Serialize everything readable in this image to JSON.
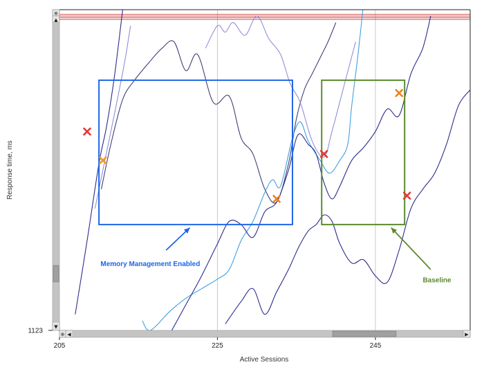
{
  "chart_data": {
    "type": "line",
    "xlabel": "Active Sessions",
    "ylabel": "Response time, ms",
    "x_ticks": [
      205,
      225,
      245
    ],
    "y_ticks": [
      1123
    ],
    "xlim": [
      205,
      257
    ],
    "grid": true,
    "series": [
      {
        "color": "#2b2b8c",
        "points": [
          [
            207,
            0.05
          ],
          [
            208.5,
            0.28
          ],
          [
            210,
            0.52
          ],
          [
            211,
            0.64
          ],
          [
            212,
            0.8
          ],
          [
            213,
            1.0
          ]
        ]
      },
      {
        "color": "#8f8fd8",
        "points": [
          [
            209.5,
            0.38
          ],
          [
            210.5,
            0.5
          ],
          [
            212,
            0.68
          ],
          [
            213.2,
            0.83
          ],
          [
            214,
            0.95
          ]
        ]
      },
      {
        "color": "#3f3f78",
        "points": [
          [
            210.3,
            0.44
          ],
          [
            211.5,
            0.58
          ],
          [
            213,
            0.72
          ],
          [
            214.5,
            0.78
          ],
          [
            216.5,
            0.84
          ],
          [
            218,
            0.88
          ],
          [
            219.5,
            0.9
          ],
          [
            221,
            0.81
          ],
          [
            222.5,
            0.86
          ],
          [
            224.5,
            0.71
          ],
          [
            226.5,
            0.73
          ],
          [
            228,
            0.6
          ],
          [
            229.5,
            0.55
          ],
          [
            231,
            0.44
          ],
          [
            232.5,
            0.4
          ],
          [
            234,
            0.52
          ],
          [
            235,
            0.66
          ],
          [
            236,
            0.75
          ],
          [
            237,
            0.8
          ],
          [
            238,
            0.85
          ],
          [
            239,
            0.9
          ],
          [
            240,
            0.96
          ]
        ]
      },
      {
        "color": "#8f8fd8",
        "points": [
          [
            223.5,
            0.88
          ],
          [
            225,
            0.95
          ],
          [
            226,
            0.93
          ],
          [
            227,
            0.96
          ],
          [
            228.5,
            0.92
          ],
          [
            230,
            0.98
          ],
          [
            231.5,
            0.91
          ],
          [
            233,
            0.86
          ],
          [
            234.2,
            0.77
          ],
          [
            235.5,
            0.71
          ],
          [
            237,
            0.59
          ],
          [
            238.5,
            0.54
          ],
          [
            239.5,
            0.62
          ],
          [
            241,
            0.76
          ],
          [
            242.5,
            0.9
          ]
        ]
      },
      {
        "color": "#3fa0e0",
        "points": [
          [
            215.5,
            0.03
          ],
          [
            216.5,
            0.0
          ],
          [
            219,
            0.06
          ],
          [
            221,
            0.1
          ],
          [
            223,
            0.13
          ],
          [
            225,
            0.16
          ],
          [
            226.5,
            0.19
          ],
          [
            228,
            0.28
          ],
          [
            229.5,
            0.34
          ],
          [
            231,
            0.43
          ],
          [
            232,
            0.47
          ],
          [
            233,
            0.45
          ],
          [
            234.5,
            0.6
          ],
          [
            235.5,
            0.65
          ],
          [
            236.5,
            0.59
          ],
          [
            238,
            0.53
          ],
          [
            239.2,
            0.49
          ],
          [
            240.5,
            0.53
          ],
          [
            241.5,
            0.58
          ],
          [
            242,
            0.7
          ],
          [
            242.8,
            0.86
          ],
          [
            243.5,
            1.02
          ]
        ]
      },
      {
        "color": "#2b2b8c",
        "points": [
          [
            219,
            -0.01
          ],
          [
            221,
            0.08
          ],
          [
            223,
            0.17
          ],
          [
            225,
            0.27
          ],
          [
            226.5,
            0.34
          ],
          [
            228,
            0.33
          ],
          [
            229.5,
            0.29
          ],
          [
            231,
            0.37
          ],
          [
            232.5,
            0.4
          ],
          [
            234,
            0.5
          ],
          [
            235.2,
            0.61
          ],
          [
            236.5,
            0.58
          ],
          [
            237.5,
            0.55
          ],
          [
            238.5,
            0.46
          ],
          [
            239.5,
            0.41
          ],
          [
            240.5,
            0.45
          ],
          [
            242,
            0.53
          ],
          [
            243.5,
            0.57
          ],
          [
            245,
            0.62
          ],
          [
            246.5,
            0.69
          ],
          [
            248,
            0.67
          ],
          [
            249.5,
            0.8
          ],
          [
            251,
            0.88
          ],
          [
            252,
            0.98
          ]
        ]
      },
      {
        "color": "#2b2b8c",
        "points": [
          [
            226,
            0.02
          ],
          [
            228,
            0.09
          ],
          [
            229.5,
            0.13
          ],
          [
            231,
            0.05
          ],
          [
            232.5,
            0.12
          ],
          [
            234,
            0.19
          ],
          [
            235.3,
            0.26
          ],
          [
            236.5,
            0.31
          ],
          [
            237.5,
            0.33
          ],
          [
            238.5,
            0.36
          ],
          [
            239.5,
            0.34
          ],
          [
            240.5,
            0.27
          ],
          [
            242,
            0.21
          ],
          [
            243.5,
            0.22
          ],
          [
            245,
            0.17
          ],
          [
            246.5,
            0.15
          ],
          [
            248,
            0.25
          ],
          [
            249.5,
            0.38
          ],
          [
            251,
            0.44
          ],
          [
            252.5,
            0.49
          ],
          [
            254,
            0.58
          ],
          [
            255.5,
            0.7
          ],
          [
            257,
            0.75
          ]
        ]
      }
    ],
    "markers": [
      {
        "x": 208.5,
        "y": 0.62,
        "color": "#e53935"
      },
      {
        "x": 210.5,
        "y": 0.53,
        "color": "#f09a16"
      },
      {
        "x": 232.5,
        "y": 0.41,
        "color": "#f07f16"
      },
      {
        "x": 238.5,
        "y": 0.55,
        "color": "#e53935"
      },
      {
        "x": 248,
        "y": 0.74,
        "color": "#f07f16"
      },
      {
        "x": 249,
        "y": 0.42,
        "color": "#e53935"
      }
    ],
    "annotations": [
      {
        "text": "Memory Management Enabled",
        "color": "#1e66e6",
        "x": [
          210,
          234.5
        ],
        "y": [
          0.33,
          0.78
        ],
        "arrow_from": [
          218.5,
          0.25
        ],
        "arrow_to": [
          221.5,
          0.32
        ],
        "label_at": [
          216.5,
          0.2
        ]
      },
      {
        "text": "Baseline",
        "color": "#5a8a2c",
        "x": [
          238.2,
          248.7
        ],
        "y": [
          0.33,
          0.78
        ],
        "arrow_from": [
          252,
          0.19
        ],
        "arrow_to": [
          247,
          0.32
        ],
        "label_at": [
          252.8,
          0.15
        ]
      }
    ],
    "reference_lines": {
      "color": "#cc2222",
      "y": [
        0.985,
        0.98,
        0.975,
        0.97
      ]
    }
  },
  "ui": {
    "scroll_up_glyph": "▲",
    "scroll_down_glyph": "▼",
    "scroll_left_glyph": "◀",
    "scroll_right_glyph": "▶",
    "reset_glyph": "⊕"
  }
}
